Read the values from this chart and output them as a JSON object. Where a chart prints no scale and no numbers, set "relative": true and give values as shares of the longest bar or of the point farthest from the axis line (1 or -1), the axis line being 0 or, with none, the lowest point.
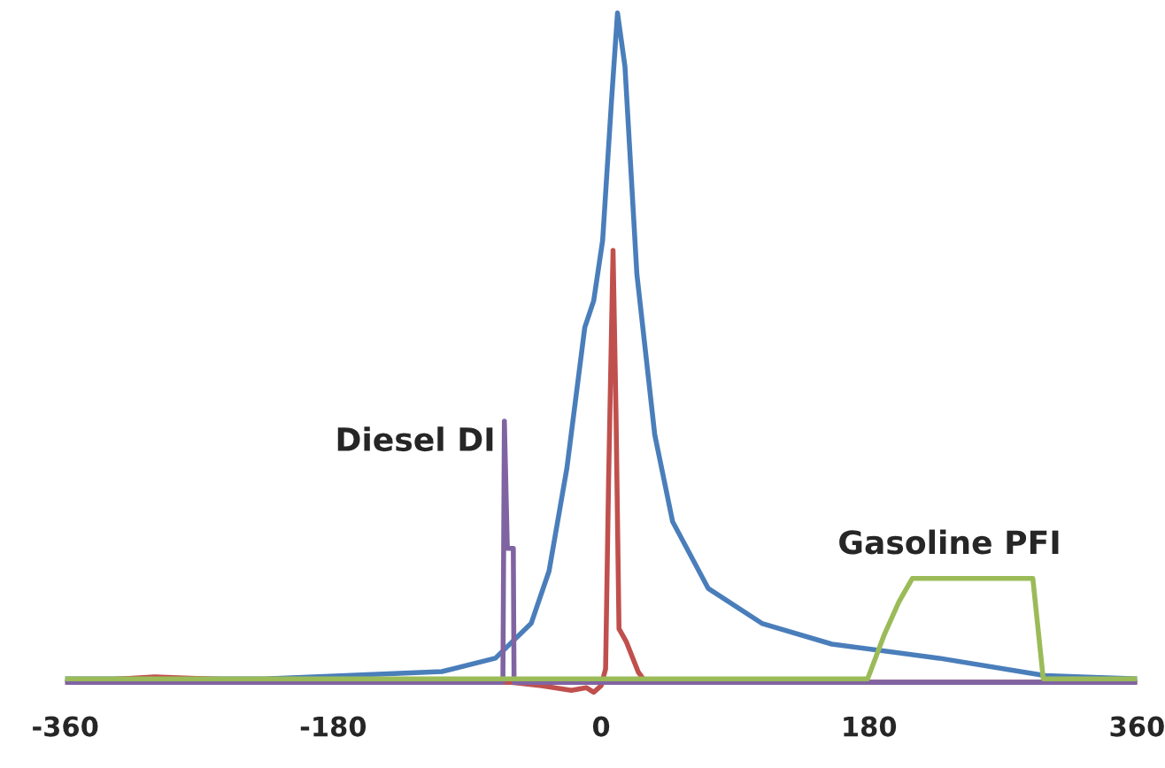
{
  "chart_data": {
    "type": "line",
    "relative": true,
    "xlim": [
      -360,
      360
    ],
    "xticks": [
      -360,
      -180,
      0,
      180,
      360
    ],
    "grid": false,
    "legend": false,
    "series": [
      {
        "color": "#4a7ebb",
        "x": [
          -360,
          -226,
          -107,
          -71,
          -47,
          -35,
          -23,
          -11,
          -5,
          1,
          7,
          11,
          16,
          24,
          36,
          48,
          72,
          108,
          155,
          227,
          298,
          360
        ],
        "values": [
          0.005,
          0.005,
          0.016,
          0.036,
          0.088,
          0.166,
          0.32,
          0.53,
          0.57,
          0.66,
          0.87,
          1,
          0.92,
          0.61,
          0.37,
          0.24,
          0.14,
          0.088,
          0.057,
          0.036,
          0.01,
          0.005
        ]
      },
      {
        "color": "#c0504d",
        "x": [
          -360,
          -300,
          -200,
          -60,
          -40,
          -20,
          -10,
          -5,
          0,
          3,
          5,
          8,
          10,
          12,
          17,
          25,
          30,
          360
        ],
        "values": [
          0,
          0.008,
          0,
          0,
          -0.005,
          -0.012,
          -0.008,
          -0.015,
          -0.005,
          0.02,
          0.3,
          0.645,
          0.4,
          0.08,
          0.06,
          0.015,
          0,
          0
        ]
      },
      {
        "name": "Diesel DI",
        "color": "#8064a2",
        "x": [
          -360,
          -66,
          -65,
          -63,
          -59,
          -58.5,
          360
        ],
        "values": [
          0,
          0,
          0.39,
          0.2,
          0.2,
          0,
          0
        ]
      },
      {
        "name": "Gasoline PFI",
        "color": "#9bbb59",
        "x": [
          -360,
          179,
          190,
          200,
          209,
          290,
          297,
          360
        ],
        "values": [
          0.005,
          0.005,
          0.07,
          0.12,
          0.155,
          0.155,
          0.005,
          0.005
        ]
      }
    ]
  }
}
